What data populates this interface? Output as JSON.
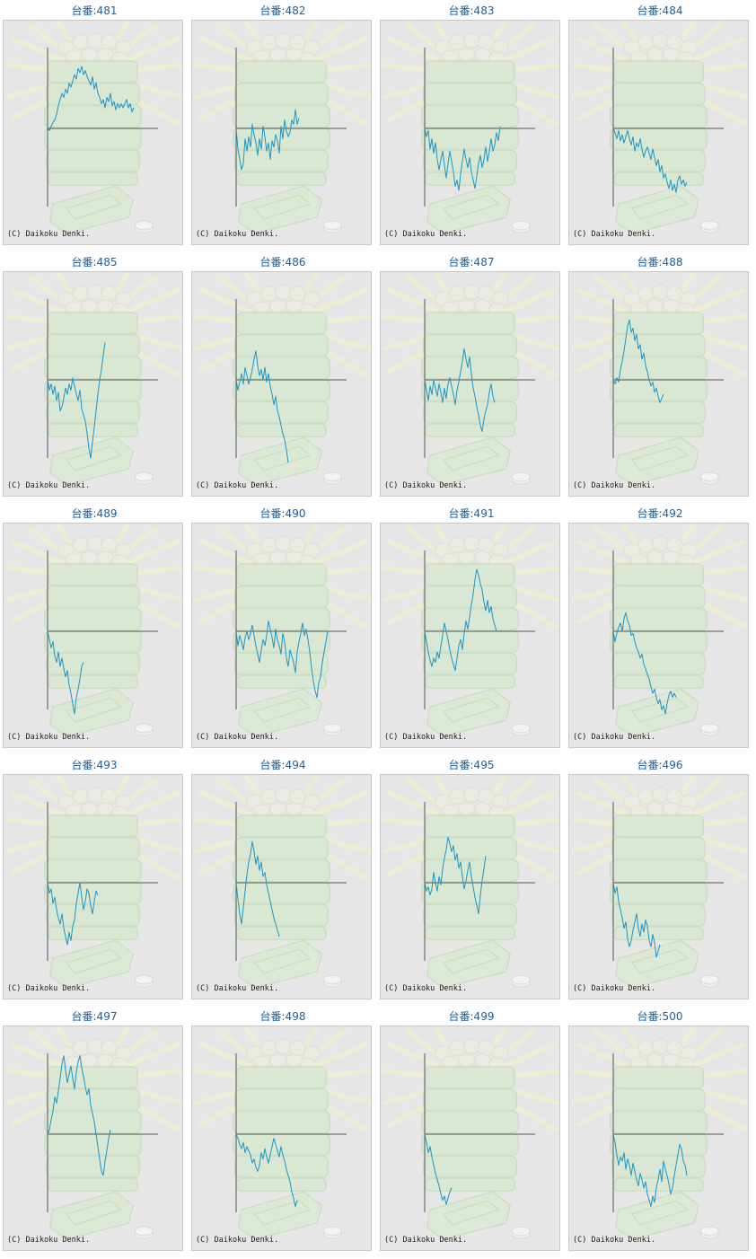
{
  "title_prefix": "台番:",
  "copyright": "(C) Daikoku Denki.",
  "line_color": "#1a96c8",
  "axis_color": "#555555",
  "chart_data": [
    {
      "type": "line",
      "title": "台番:481",
      "y": [
        0,
        -2,
        2,
        6,
        8,
        14,
        22,
        28,
        34,
        30,
        38,
        34,
        44,
        40,
        46,
        52,
        48,
        58,
        54,
        60,
        52,
        56,
        50,
        46,
        42,
        50,
        38,
        44,
        34,
        30,
        24,
        28,
        20,
        30,
        26,
        34,
        22,
        26,
        18,
        24,
        20,
        24,
        20,
        24,
        28,
        20,
        24,
        16,
        20
      ]
    },
    {
      "type": "line",
      "title": "台番:482",
      "y": [
        0,
        -20,
        -30,
        -40,
        -34,
        -10,
        -22,
        -8,
        -18,
        4,
        -6,
        -14,
        -26,
        -10,
        -20,
        2,
        -8,
        -22,
        -14,
        -30,
        -12,
        -18,
        -6,
        -12,
        -24,
        2,
        -10,
        8,
        -2,
        -8,
        -4,
        8,
        4,
        18,
        4,
        10
      ]
    },
    {
      "type": "line",
      "title": "台番:483",
      "y": [
        0,
        -8,
        -2,
        -20,
        -10,
        -24,
        -14,
        -30,
        -40,
        -30,
        -22,
        -36,
        -48,
        -34,
        -22,
        -32,
        -42,
        -56,
        -50,
        -60,
        -44,
        -32,
        -20,
        -30,
        -38,
        -28,
        -42,
        -50,
        -58,
        -46,
        -34,
        -26,
        -38,
        -30,
        -18,
        -32,
        -22,
        -10,
        -22,
        -16,
        -4,
        -12,
        2
      ]
    },
    {
      "type": "line",
      "title": "台番:484",
      "y": [
        0,
        -4,
        -10,
        -2,
        -12,
        -6,
        -14,
        -8,
        -2,
        -10,
        -16,
        -8,
        -22,
        -14,
        -18,
        -10,
        -20,
        -28,
        -22,
        -18,
        -24,
        -30,
        -20,
        -28,
        -36,
        -30,
        -42,
        -36,
        -48,
        -44,
        -52,
        -58,
        -50,
        -60,
        -54,
        -62,
        -50,
        -46,
        -54,
        -50,
        -56,
        -52
      ]
    },
    {
      "type": "line",
      "title": "台番:485",
      "y": [
        0,
        -10,
        -4,
        -14,
        -6,
        -20,
        -12,
        -30,
        -26,
        -18,
        -8,
        -14,
        -4,
        -10,
        2,
        -6,
        -14,
        -20,
        -10,
        -28,
        -34,
        -40,
        -52,
        -66,
        -76,
        -60,
        -46,
        -30,
        -14,
        0,
        10,
        24,
        36
      ]
    },
    {
      "type": "line",
      "title": "台番:486",
      "y": [
        0,
        -10,
        -2,
        6,
        -4,
        12,
        4,
        -4,
        2,
        10,
        20,
        28,
        14,
        4,
        10,
        0,
        12,
        -2,
        6,
        -6,
        -14,
        -24,
        -16,
        -30,
        -36,
        -44,
        -52,
        -58,
        -68,
        -80
      ]
    },
    {
      "type": "line",
      "title": "台番:487",
      "y": [
        0,
        -10,
        -20,
        -6,
        -14,
        0,
        -8,
        -16,
        -4,
        -12,
        -22,
        -8,
        -18,
        -4,
        2,
        -6,
        -14,
        -24,
        -10,
        -2,
        8,
        18,
        30,
        20,
        12,
        22,
        6,
        -8,
        -16,
        -26,
        -34,
        -44,
        -50,
        -38,
        -30,
        -24,
        -12,
        -4,
        -16,
        -22
      ]
    },
    {
      "type": "line",
      "title": "台番:488",
      "y": [
        0,
        -4,
        2,
        -2,
        10,
        18,
        28,
        40,
        52,
        58,
        46,
        50,
        38,
        44,
        30,
        34,
        20,
        26,
        14,
        8,
        0,
        -6,
        -2,
        -12,
        -8,
        -16,
        -22,
        -18,
        -14
      ]
    },
    {
      "type": "line",
      "title": "台番:489",
      "y": [
        0,
        -8,
        -16,
        -10,
        -24,
        -30,
        -20,
        -34,
        -26,
        -36,
        -44,
        -38,
        -52,
        -60,
        -70,
        -80,
        -64,
        -56,
        -46,
        -34,
        -30
      ]
    },
    {
      "type": "line",
      "title": "台番:490",
      "y": [
        0,
        -14,
        -4,
        -10,
        -18,
        -6,
        0,
        -8,
        -2,
        6,
        -4,
        -14,
        -22,
        -30,
        -18,
        -8,
        -14,
        -4,
        10,
        2,
        -6,
        -16,
        2,
        -8,
        -14,
        -22,
        -2,
        -10,
        -26,
        -34,
        -18,
        -24,
        -30,
        -40,
        -20,
        -10,
        -2,
        8,
        -4,
        2,
        -8,
        -20,
        -36,
        -48,
        -58,
        -64,
        -50,
        -44,
        -30,
        -20,
        -10,
        0
      ]
    },
    {
      "type": "line",
      "title": "台番:491",
      "y": [
        0,
        -10,
        -20,
        -28,
        -34,
        -26,
        -30,
        -20,
        -26,
        -14,
        -4,
        8,
        0,
        -8,
        -18,
        -26,
        -32,
        -38,
        -26,
        -14,
        -8,
        -18,
        -2,
        10,
        2,
        14,
        26,
        36,
        50,
        60,
        54,
        46,
        40,
        28,
        20,
        30,
        18,
        24,
        12,
        6,
        0
      ]
    },
    {
      "type": "line",
      "title": "台番:492",
      "y": [
        0,
        -10,
        -2,
        4,
        8,
        0,
        12,
        18,
        10,
        6,
        -4,
        -2,
        -10,
        -16,
        -20,
        -26,
        -22,
        -32,
        -36,
        -42,
        -46,
        -54,
        -60,
        -56,
        -64,
        -70,
        -66,
        -76,
        -72,
        -80,
        -70,
        -62,
        -58,
        -64,
        -60,
        -64
      ]
    },
    {
      "type": "line",
      "title": "台番:493",
      "y": [
        0,
        -10,
        -6,
        -20,
        -14,
        -26,
        -34,
        -40,
        -30,
        -44,
        -52,
        -60,
        -48,
        -56,
        -42,
        -36,
        -20,
        -10,
        0,
        -14,
        -26,
        -18,
        -6,
        -10,
        -22,
        -30,
        -18,
        -8,
        -12
      ]
    },
    {
      "type": "line",
      "title": "台番:494",
      "y": [
        0,
        -16,
        -30,
        -40,
        -24,
        -8,
        8,
        20,
        28,
        40,
        30,
        18,
        26,
        12,
        20,
        6,
        10,
        -2,
        -10,
        -18,
        -26,
        -34,
        -40,
        -46,
        -52
      ]
    },
    {
      "type": "line",
      "title": "台番:495",
      "y": [
        0,
        -8,
        -4,
        -12,
        -6,
        10,
        0,
        -8,
        6,
        -2,
        14,
        24,
        32,
        44,
        38,
        30,
        36,
        22,
        28,
        14,
        20,
        6,
        -6,
        2,
        12,
        20,
        6,
        -4,
        -14,
        -22,
        -30,
        -12,
        2,
        14,
        26
      ]
    },
    {
      "type": "line",
      "title": "台番:496",
      "y": [
        0,
        -10,
        -4,
        -18,
        -26,
        -34,
        -44,
        -38,
        -54,
        -62,
        -56,
        -46,
        -38,
        -30,
        -44,
        -52,
        -40,
        -48,
        -36,
        -42,
        -56,
        -62,
        -50,
        -58,
        -72,
        -66,
        -60
      ]
    },
    {
      "type": "line",
      "title": "台番:497",
      "y": [
        0,
        4,
        14,
        22,
        36,
        30,
        42,
        54,
        68,
        76,
        62,
        50,
        58,
        66,
        54,
        44,
        60,
        70,
        76,
        64,
        56,
        46,
        38,
        44,
        28,
        20,
        12,
        0,
        -12,
        -24,
        -36,
        -40,
        -26,
        -16,
        -4,
        4
      ]
    },
    {
      "type": "line",
      "title": "台番:498",
      "y": [
        0,
        -4,
        -10,
        -14,
        -8,
        -18,
        -12,
        -16,
        -20,
        -28,
        -24,
        -32,
        -36,
        -30,
        -18,
        -24,
        -14,
        -22,
        -28,
        -20,
        -12,
        -4,
        -10,
        -16,
        -22,
        -12,
        -20,
        -26,
        -34,
        -40,
        -46,
        -56,
        -62,
        -70,
        -64
      ]
    },
    {
      "type": "line",
      "title": "台番:499",
      "y": [
        0,
        -8,
        -18,
        -12,
        -22,
        -30,
        -38,
        -44,
        -50,
        -58,
        -64,
        -60,
        -68,
        -62,
        -56,
        -52
      ]
    },
    {
      "type": "line",
      "title": "台番:500",
      "y": [
        0,
        -8,
        -20,
        -30,
        -22,
        -26,
        -18,
        -34,
        -24,
        -30,
        -40,
        -28,
        -36,
        -44,
        -50,
        -38,
        -44,
        -52,
        -46,
        -58,
        -64,
        -70,
        -60,
        -66,
        -52,
        -44,
        -34,
        -46,
        -26,
        -34,
        -40,
        -48,
        -58,
        -52,
        -40,
        -30,
        -20,
        -10,
        -14,
        -26,
        -30,
        -40
      ]
    }
  ]
}
